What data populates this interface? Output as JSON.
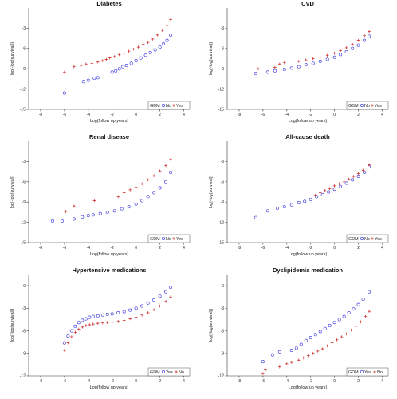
{
  "chart_data": [
    {
      "type": "scatter",
      "title": "Diabetes",
      "xlabel": "Log(follow up years)",
      "ylabel": "log(-log(survival))",
      "xlim": [
        -9,
        4.5
      ],
      "ylim": [
        -15,
        0
      ],
      "xticks": [
        -8,
        -6,
        -4,
        -2,
        0,
        2,
        4
      ],
      "yticks": [
        -15,
        -12,
        -9,
        -6,
        -3
      ],
      "legend": {
        "title": "GDM",
        "position": "bottom-right"
      },
      "series": [
        {
          "name": "No",
          "marker": "circle",
          "color": "#3333dd",
          "x": [
            -6.0,
            -4.4,
            -4.0,
            -3.5,
            -3.2,
            -2.0,
            -1.7,
            -1.4,
            -1.1,
            -0.8,
            -0.4,
            0.0,
            0.4,
            0.8,
            1.2,
            1.6,
            2.0,
            2.3,
            2.6,
            2.9
          ],
          "y": [
            -12.6,
            -10.9,
            -10.7,
            -10.4,
            -10.3,
            -9.5,
            -9.3,
            -9.0,
            -8.7,
            -8.5,
            -8.2,
            -7.8,
            -7.4,
            -7.0,
            -6.6,
            -6.2,
            -5.8,
            -5.3,
            -4.8,
            -4.0
          ]
        },
        {
          "name": "Yes",
          "marker": "plus",
          "color": "#cc2222",
          "x": [
            -6.0,
            -5.2,
            -4.6,
            -4.2,
            -3.7,
            -3.2,
            -2.8,
            -2.5,
            -2.2,
            -1.8,
            -1.4,
            -1.0,
            -0.6,
            -0.2,
            0.2,
            0.6,
            1.0,
            1.4,
            1.8,
            2.2,
            2.6,
            2.9
          ],
          "y": [
            -9.5,
            -8.7,
            -8.5,
            -8.3,
            -8.2,
            -8.0,
            -7.8,
            -7.6,
            -7.4,
            -7.2,
            -6.9,
            -6.7,
            -6.4,
            -6.1,
            -5.8,
            -5.4,
            -5.1,
            -4.6,
            -4.0,
            -3.3,
            -2.6,
            -1.7
          ]
        }
      ]
    },
    {
      "type": "scatter",
      "title": "CVD",
      "xlabel": "Log(follow up years)",
      "ylabel": "log(-log(survival))",
      "xlim": [
        -9,
        4.5
      ],
      "ylim": [
        -15,
        0
      ],
      "xticks": [
        -8,
        -6,
        -4,
        -2,
        0,
        2,
        4
      ],
      "yticks": [
        -15,
        -12,
        -9,
        -6,
        -3
      ],
      "legend": {
        "title": "GDM",
        "position": "bottom-right"
      },
      "series": [
        {
          "name": "No",
          "marker": "circle",
          "color": "#3333dd",
          "x": [
            -6.6,
            -5.6,
            -5.0,
            -4.2,
            -3.6,
            -3.0,
            -2.4,
            -1.8,
            -1.2,
            -0.6,
            0.0,
            0.5,
            1.0,
            1.5,
            2.0,
            2.5,
            2.9
          ],
          "y": [
            -9.7,
            -9.5,
            -9.3,
            -9.1,
            -8.9,
            -8.7,
            -8.4,
            -8.2,
            -7.9,
            -7.6,
            -7.3,
            -6.9,
            -6.5,
            -6.0,
            -5.5,
            -4.8,
            -4.2
          ]
        },
        {
          "name": "Yes",
          "marker": "plus",
          "color": "#cc2222",
          "x": [
            -6.4,
            -5.0,
            -4.6,
            -4.2,
            -3.0,
            -2.4,
            -1.8,
            -1.2,
            -0.6,
            0.0,
            0.5,
            1.0,
            1.5,
            2.0,
            2.5,
            2.9
          ],
          "y": [
            -9.0,
            -8.8,
            -8.3,
            -8.1,
            -7.9,
            -7.7,
            -7.5,
            -7.3,
            -7.0,
            -6.7,
            -6.3,
            -5.9,
            -5.4,
            -4.8,
            -4.1,
            -3.5
          ]
        }
      ]
    },
    {
      "type": "scatter",
      "title": "Renal disease",
      "xlabel": "Log(follow up years)",
      "ylabel": "log(-log(survival))",
      "xlim": [
        -9,
        4.5
      ],
      "ylim": [
        -15,
        0
      ],
      "xticks": [
        -8,
        -6,
        -4,
        -2,
        0,
        2,
        4
      ],
      "yticks": [
        -15,
        -12,
        -9,
        -6,
        -3
      ],
      "legend": {
        "title": "GDM",
        "position": "bottom-right"
      },
      "series": [
        {
          "name": "No",
          "marker": "circle",
          "color": "#3333dd",
          "x": [
            -7.0,
            -6.2,
            -5.2,
            -4.5,
            -4.0,
            -3.6,
            -3.0,
            -2.4,
            -1.8,
            -1.2,
            -0.6,
            0.0,
            0.5,
            1.0,
            1.5,
            2.0,
            2.5,
            2.9
          ],
          "y": [
            -11.8,
            -11.8,
            -11.5,
            -11.2,
            -11.0,
            -10.9,
            -10.7,
            -10.5,
            -10.3,
            -10.0,
            -9.7,
            -9.3,
            -8.8,
            -8.2,
            -7.6,
            -6.9,
            -6.0,
            -4.6
          ]
        },
        {
          "name": "Yes",
          "marker": "plus",
          "color": "#cc2222",
          "x": [
            -5.9,
            -5.2,
            -3.5,
            -1.5,
            -1.0,
            -0.5,
            0.0,
            0.5,
            1.0,
            1.5,
            2.0,
            2.5,
            2.9
          ],
          "y": [
            -10.4,
            -9.6,
            -8.8,
            -8.2,
            -7.6,
            -7.2,
            -6.8,
            -6.3,
            -5.7,
            -5.1,
            -4.4,
            -3.6,
            -2.7
          ]
        }
      ]
    },
    {
      "type": "scatter",
      "title": "All-cause death",
      "xlabel": "Log(follow up years)",
      "ylabel": "log(-log(survival))",
      "xlim": [
        -9,
        4.5
      ],
      "ylim": [
        -15,
        0
      ],
      "xticks": [
        -8,
        -6,
        -4,
        -2,
        0,
        2,
        4
      ],
      "yticks": [
        -15,
        -12,
        -9,
        -6,
        -3
      ],
      "legend": {
        "title": "GDM",
        "position": "bottom-right"
      },
      "series": [
        {
          "name": "No",
          "marker": "circle",
          "color": "#3333dd",
          "x": [
            -6.6,
            -5.6,
            -4.8,
            -4.2,
            -3.6,
            -3.0,
            -2.5,
            -2.0,
            -1.5,
            -1.0,
            -0.5,
            0.0,
            0.5,
            1.0,
            1.5,
            2.0,
            2.5,
            2.9
          ],
          "y": [
            -11.3,
            -10.3,
            -9.9,
            -9.7,
            -9.4,
            -9.1,
            -8.9,
            -8.6,
            -8.2,
            -7.9,
            -7.5,
            -7.1,
            -6.7,
            -6.2,
            -5.7,
            -5.2,
            -4.6,
            -3.8
          ]
        },
        {
          "name": "Yes",
          "marker": "plus",
          "color": "#cc2222",
          "x": [
            -1.6,
            -1.2,
            -0.8,
            -0.4,
            0.0,
            0.4,
            0.8,
            1.2,
            1.6,
            2.0,
            2.4,
            2.9
          ],
          "y": [
            -8.0,
            -7.6,
            -7.3,
            -7.0,
            -6.6,
            -6.3,
            -6.0,
            -5.6,
            -5.2,
            -4.8,
            -4.3,
            -3.5
          ]
        }
      ]
    },
    {
      "type": "scatter",
      "title": "Hypertensive medications",
      "xlabel": "Log(follow up years)",
      "ylabel": "log(-log(survival))",
      "xlim": [
        -9,
        4.5
      ],
      "ylim": [
        -12,
        1.5
      ],
      "xticks": [
        -8,
        -6,
        -4,
        -2,
        0,
        2,
        4
      ],
      "yticks": [
        -12,
        -9,
        -6,
        -3,
        0
      ],
      "legend": {
        "title": "GDM",
        "position": "bottom-right"
      },
      "series": [
        {
          "name": "Yes",
          "marker": "circle",
          "color": "#3333dd",
          "x": [
            -6.0,
            -5.7,
            -5.4,
            -5.1,
            -4.8,
            -4.5,
            -4.2,
            -3.9,
            -3.6,
            -3.2,
            -2.8,
            -2.4,
            -2.0,
            -1.5,
            -1.0,
            -0.5,
            0.0,
            0.5,
            1.0,
            1.5,
            2.0,
            2.5,
            2.9
          ],
          "y": [
            -7.6,
            -6.7,
            -6.0,
            -5.4,
            -4.9,
            -4.6,
            -4.4,
            -4.2,
            -4.1,
            -4.0,
            -3.9,
            -3.8,
            -3.75,
            -3.6,
            -3.45,
            -3.25,
            -3.0,
            -2.7,
            -2.3,
            -1.9,
            -1.4,
            -0.8,
            -0.2
          ]
        },
        {
          "name": "No",
          "marker": "plus",
          "color": "#cc2222",
          "x": [
            -6.0,
            -5.7,
            -5.4,
            -5.1,
            -4.8,
            -4.5,
            -4.2,
            -3.9,
            -3.6,
            -3.2,
            -2.8,
            -2.4,
            -2.0,
            -1.5,
            -1.0,
            -0.5,
            0.0,
            0.5,
            1.0,
            1.5,
            2.0,
            2.5,
            2.9
          ],
          "y": [
            -8.6,
            -7.6,
            -6.8,
            -6.2,
            -5.8,
            -5.5,
            -5.3,
            -5.2,
            -5.1,
            -5.0,
            -4.95,
            -4.9,
            -4.85,
            -4.75,
            -4.6,
            -4.4,
            -4.2,
            -3.9,
            -3.6,
            -3.2,
            -2.7,
            -2.1,
            -1.5
          ]
        }
      ]
    },
    {
      "type": "scatter",
      "title": "Dyslipidemia medication",
      "xlabel": "Log(follow up years)",
      "ylabel": "log(-log(survival))",
      "xlim": [
        -9,
        4.5
      ],
      "ylim": [
        -12,
        1.5
      ],
      "xticks": [
        -8,
        -6,
        -4,
        -2,
        0,
        2,
        4
      ],
      "yticks": [
        -12,
        -9,
        -6,
        -3,
        0
      ],
      "legend": {
        "title": "GDM",
        "position": "bottom-right"
      },
      "series": [
        {
          "name": "Yes",
          "marker": "circle",
          "color": "#3333dd",
          "x": [
            -6.0,
            -5.2,
            -4.6,
            -3.6,
            -3.2,
            -2.8,
            -2.4,
            -2.0,
            -1.6,
            -1.2,
            -0.8,
            -0.4,
            0.0,
            0.4,
            0.8,
            1.2,
            1.6,
            2.0,
            2.4,
            2.9
          ],
          "y": [
            -10.1,
            -9.2,
            -8.8,
            -8.6,
            -8.3,
            -7.8,
            -7.3,
            -6.9,
            -6.5,
            -6.1,
            -5.7,
            -5.3,
            -4.9,
            -4.5,
            -4.1,
            -3.6,
            -3.1,
            -2.5,
            -1.8,
            -0.8
          ]
        },
        {
          "name": "No",
          "marker": "plus",
          "color": "#cc2222",
          "x": [
            -6.0,
            -5.8,
            -4.6,
            -4.0,
            -3.6,
            -3.0,
            -2.6,
            -2.2,
            -1.8,
            -1.4,
            -1.0,
            -0.6,
            -0.2,
            0.2,
            0.6,
            1.0,
            1.4,
            1.8,
            2.2,
            2.6,
            2.9
          ],
          "y": [
            -11.7,
            -11.2,
            -10.8,
            -10.4,
            -10.2,
            -9.9,
            -9.6,
            -9.3,
            -9.0,
            -8.7,
            -8.4,
            -8.0,
            -7.6,
            -7.2,
            -6.8,
            -6.4,
            -5.9,
            -5.4,
            -4.8,
            -4.1,
            -3.4
          ]
        }
      ]
    }
  ]
}
